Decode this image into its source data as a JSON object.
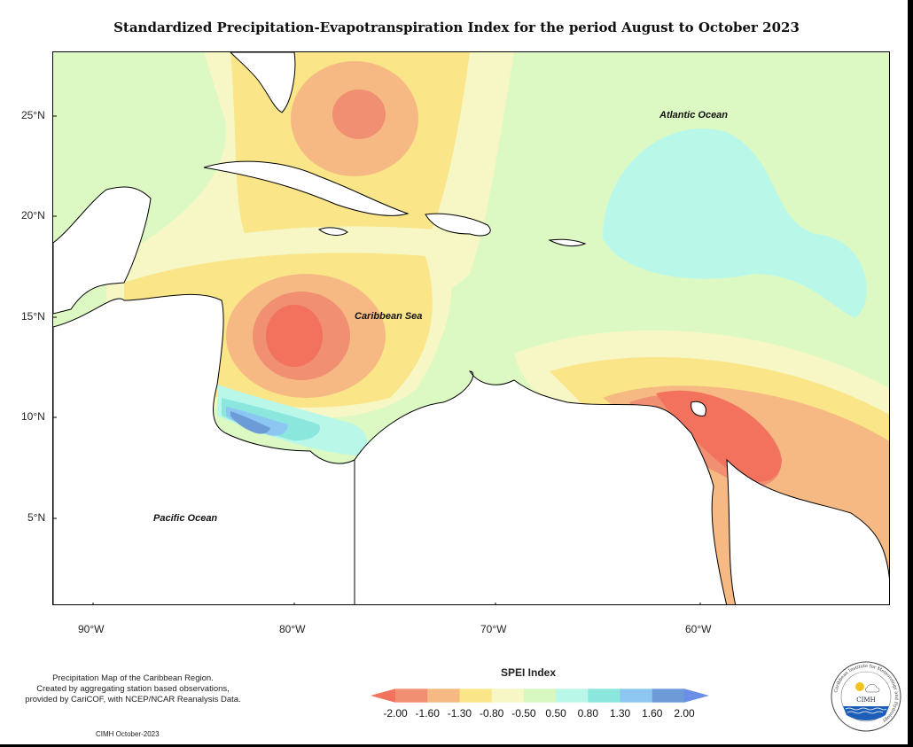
{
  "title": "Standardized Precipitation-Evapotranspiration Index for the period August to October 2023",
  "map": {
    "latitude_labels": [
      "25°N",
      "20°N",
      "15°N",
      "10°N",
      "5°N"
    ],
    "longitude_labels": [
      "90°W",
      "80°W",
      "70°W",
      "60°W"
    ],
    "ocean_labels": {
      "atlantic": "Atlantic Ocean",
      "caribbean": "Caribbean Sea",
      "pacific": "Pacific Ocean"
    }
  },
  "legend": {
    "title": "SPEI Index",
    "ticks": [
      "-2.00",
      "-1.60",
      "-1.30",
      "-0.80",
      "-0.50",
      "0.50",
      "0.80",
      "1.30",
      "1.60",
      "2.00"
    ],
    "colors": [
      "#f2725e",
      "#f08f72",
      "#f6b983",
      "#fae588",
      "#f6f7c5",
      "#d6f7bd",
      "#b9f8e9",
      "#8be7de",
      "#8cc7f1",
      "#6d9bd8",
      "#6b8ee6"
    ]
  },
  "description": {
    "line1": "Precipitation Map of the Caribbean Region.",
    "line2": "Created by aggregating station based observations,",
    "line3": "provided by CariCOF, with NCEP/NCAR Reanalysis Data."
  },
  "credit": "CIMH October-2023",
  "logo": {
    "text": "CIMH",
    "ring_text": "Caribbean Institute for Meteorology and Hydrology"
  }
}
